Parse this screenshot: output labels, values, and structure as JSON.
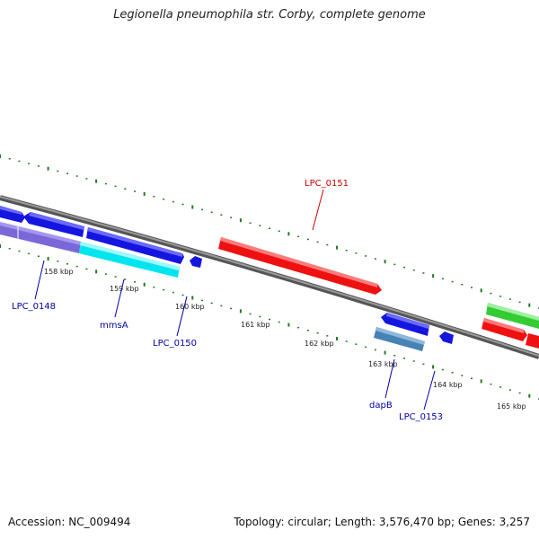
{
  "title": "Legionella pneumophila str. Corby, complete genome",
  "footer": {
    "accession": "Accession: NC_009494",
    "summary": "Topology: circular; Length: 3,576,470 bp; Genes: 3,257"
  },
  "colors": {
    "backbone": "#808080",
    "tick": "#1f7a1f",
    "forward_label": "#0000aa",
    "reverse_label": "#cc0000"
  },
  "scale_labels": [
    "158 kbp",
    "159 kbp",
    "160 kbp",
    "161 kbp",
    "162 kbp",
    "163 kbp",
    "164 kbp",
    "165 kbp"
  ],
  "genes": [
    {
      "id": "g-left-top",
      "label": "",
      "color": "#1515e0",
      "strand": "+",
      "lane": "outer-left"
    },
    {
      "id": "g-lpc0148",
      "label": "LPC_0148",
      "color": "#7b68d8",
      "strand": "-"
    },
    {
      "id": "g-blue-2",
      "label": "",
      "color": "#1515e0",
      "strand": "-"
    },
    {
      "id": "g-blue-3",
      "label": "",
      "color": "#1515e0",
      "strand": "+"
    },
    {
      "id": "g-mmsa",
      "label": "mmsA",
      "color": "#00e5ee",
      "strand": "+"
    },
    {
      "id": "g-lpc0150",
      "label": "LPC_0150",
      "color": "#1515e0",
      "strand": "-"
    },
    {
      "id": "g-lpc0151",
      "label": "LPC_0151",
      "color": "#ee1111",
      "strand": "+"
    },
    {
      "id": "g-blue-4",
      "label": "",
      "color": "#1515e0",
      "strand": "-"
    },
    {
      "id": "g-dapb",
      "label": "dapB",
      "color": "#4682b4",
      "strand": "+"
    },
    {
      "id": "g-lpc0153",
      "label": "LPC_0153",
      "color": "#1515e0",
      "strand": "-"
    },
    {
      "id": "g-green",
      "label": "",
      "color": "#33cc33",
      "strand": "+"
    },
    {
      "id": "g-red-2",
      "label": "",
      "color": "#ee1111",
      "strand": "+"
    },
    {
      "id": "g-red-3",
      "label": "",
      "color": "#ee1111",
      "strand": "+"
    }
  ]
}
